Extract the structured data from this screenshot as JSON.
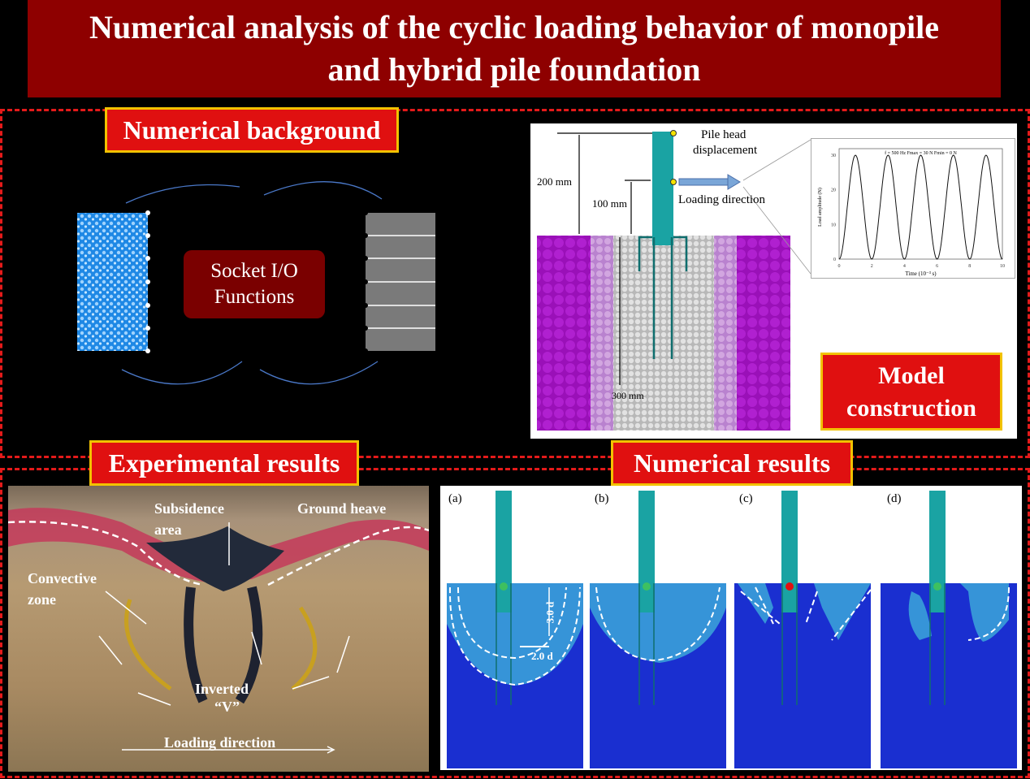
{
  "title": {
    "line1": "Numerical analysis of the cyclic loading behavior of monopile",
    "line2": "and hybrid pile foundation"
  },
  "sections": {
    "background": {
      "label": "Numerical background",
      "socket_line1": "Socket I/O",
      "socket_line2": "Functions"
    },
    "model": {
      "label_line1": "Model",
      "label_line2": "construction",
      "pile_head": "Pile head",
      "displacement": "displacement",
      "loading_direction": "Loading direction",
      "dim_200": "200 mm",
      "dim_100": "100 mm",
      "dim_300": "300 mm"
    },
    "experimental": {
      "label": "Experimental results",
      "subsidence": "Subsidence",
      "area": "area",
      "ground_heave": "Ground heave",
      "convective": "Convective",
      "zone": "zone",
      "inverted": "Inverted",
      "v": "“V”",
      "loading_direction": "Loading direction"
    },
    "numerical": {
      "label": "Numerical results",
      "panels": [
        "(a)",
        "(b)",
        "(c)",
        "(d)"
      ],
      "dim_3d": "3.0 d",
      "dim_2d": "2.0 d"
    }
  },
  "chart_data": {
    "type": "line",
    "annotation": "f = 500 Hz  Fmax = 30 N  Fmin = 0 N",
    "xlabel": "Time (10⁻³ s)",
    "ylabel": "Load amplitude (N)",
    "xlim": [
      0,
      10
    ],
    "ylim": [
      0,
      30
    ],
    "xticks": [
      "0",
      "2",
      "4",
      "6",
      "8",
      "10"
    ],
    "yticks": [
      "0",
      "10",
      "20",
      "30"
    ],
    "function": "15 - 15*cos(pi*t)",
    "peaks_x": [
      1,
      3,
      5,
      7,
      9
    ],
    "peak_value": 30,
    "trough_value": 0
  },
  "colors": {
    "banner": "#8e0000",
    "label_bg": "#e01010",
    "label_border": "#f2c200",
    "dash": "#e41a1a",
    "pile": "#1aa3a3",
    "soil_deep": "#1a2fd0",
    "soil_disturbed": "#3aa0d8"
  }
}
